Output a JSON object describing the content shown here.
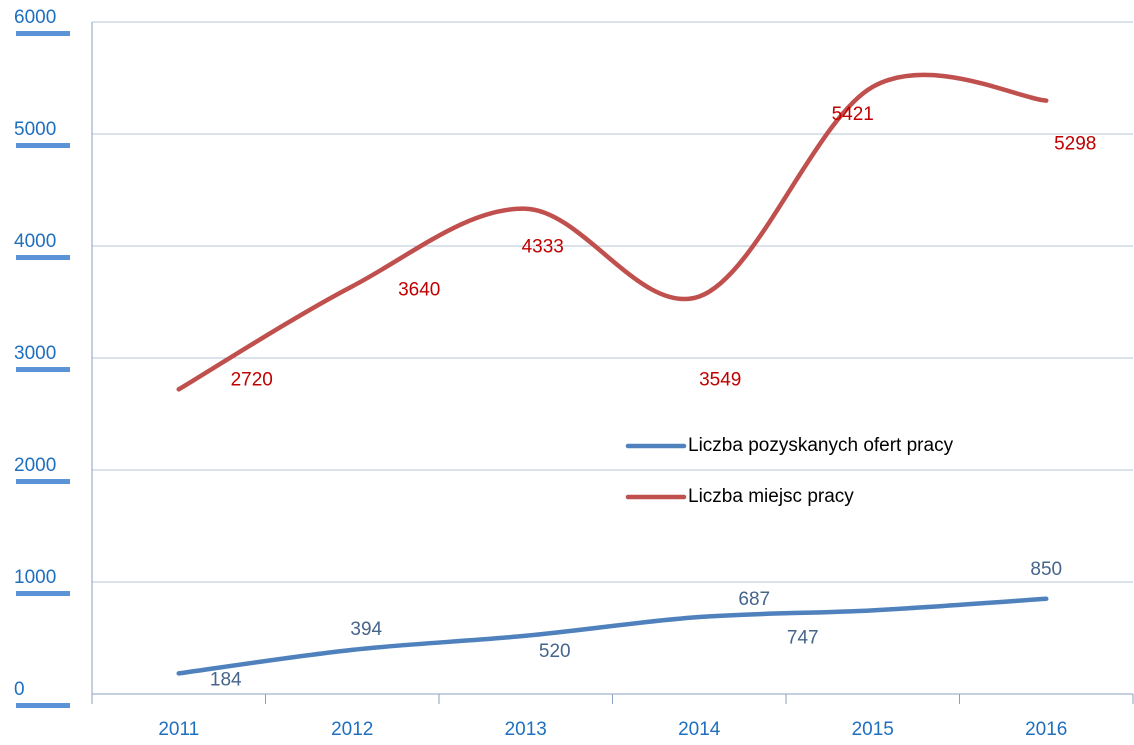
{
  "chart_data": {
    "type": "line",
    "categories": [
      "2011",
      "2012",
      "2013",
      "2014",
      "2015",
      "2016"
    ],
    "series": [
      {
        "name": "Liczba pozyskanych ofert pracy",
        "color": "#4f81bd",
        "values": [
          184,
          394,
          520,
          687,
          747,
          850
        ]
      },
      {
        "name": "Liczba miejsc pracy",
        "color": "#c0504d",
        "values": [
          2720,
          3640,
          4333,
          3549,
          5421,
          5298
        ]
      }
    ],
    "ylim": [
      0,
      6000
    ],
    "yticks": [
      0,
      1000,
      2000,
      3000,
      4000,
      5000,
      6000
    ],
    "grid": true,
    "smooth": true
  }
}
